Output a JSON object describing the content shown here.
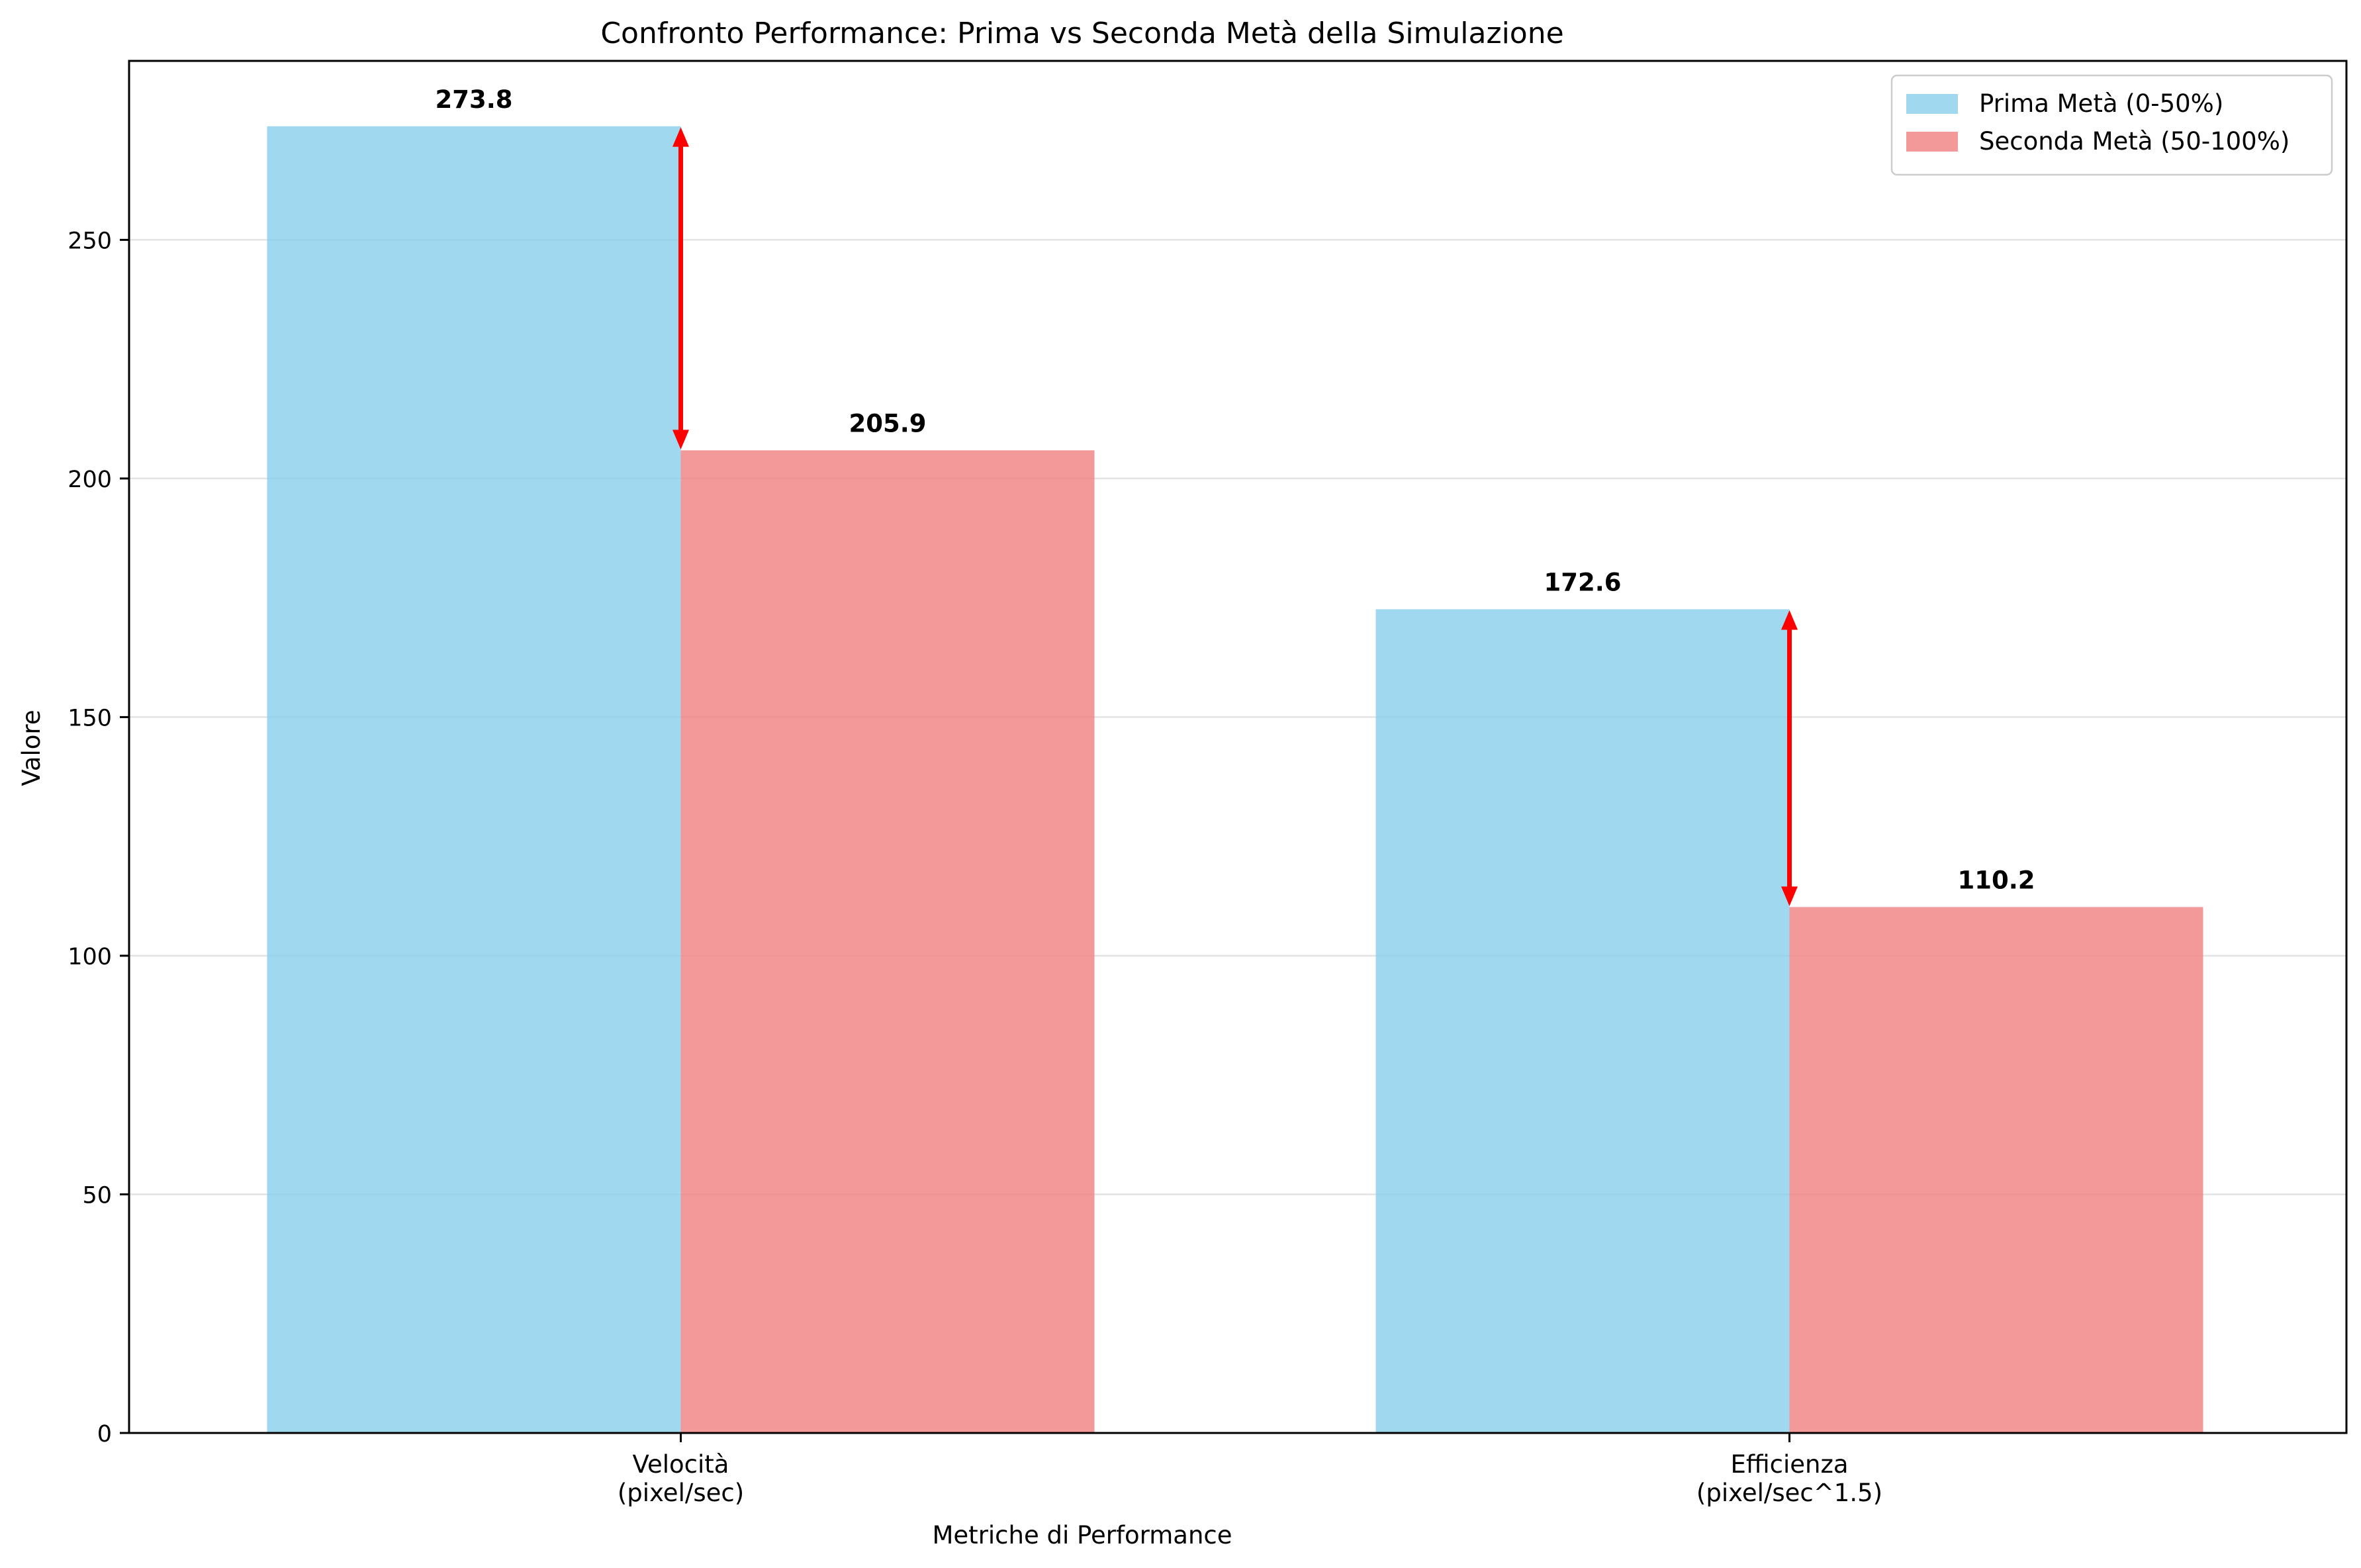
{
  "chart_data": {
    "type": "bar",
    "title": "Confronto Performance: Prima vs Seconda Metà della Simulazione",
    "xlabel": "Metriche di Performance",
    "ylabel": "Valore",
    "categories": [
      [
        "Velocità",
        "(pixel/sec)"
      ],
      [
        "Efficienza",
        "(pixel/sec^1.5)"
      ]
    ],
    "series": [
      {
        "name": "Prima Metà (0-50%)",
        "color": "#87ceeb",
        "values": [
          273.8,
          172.6
        ],
        "labels": [
          "273.8",
          "172.6"
        ]
      },
      {
        "name": "Seconda Metà (50-100%)",
        "color": "#f08080",
        "values": [
          205.9,
          110.2
        ],
        "labels": [
          "205.9",
          "110.2"
        ]
      }
    ],
    "ylim": [
      0,
      287.5
    ],
    "yticks": [
      0,
      50,
      100,
      150,
      200,
      250
    ],
    "grid": true,
    "legend_position": "top-right",
    "annotations": [
      {
        "type": "double-arrow",
        "category": 0,
        "from": 273.8,
        "to": 205.9,
        "color": "#ff0000"
      },
      {
        "type": "double-arrow",
        "category": 1,
        "from": 172.6,
        "to": 110.2,
        "color": "#ff0000"
      }
    ]
  }
}
